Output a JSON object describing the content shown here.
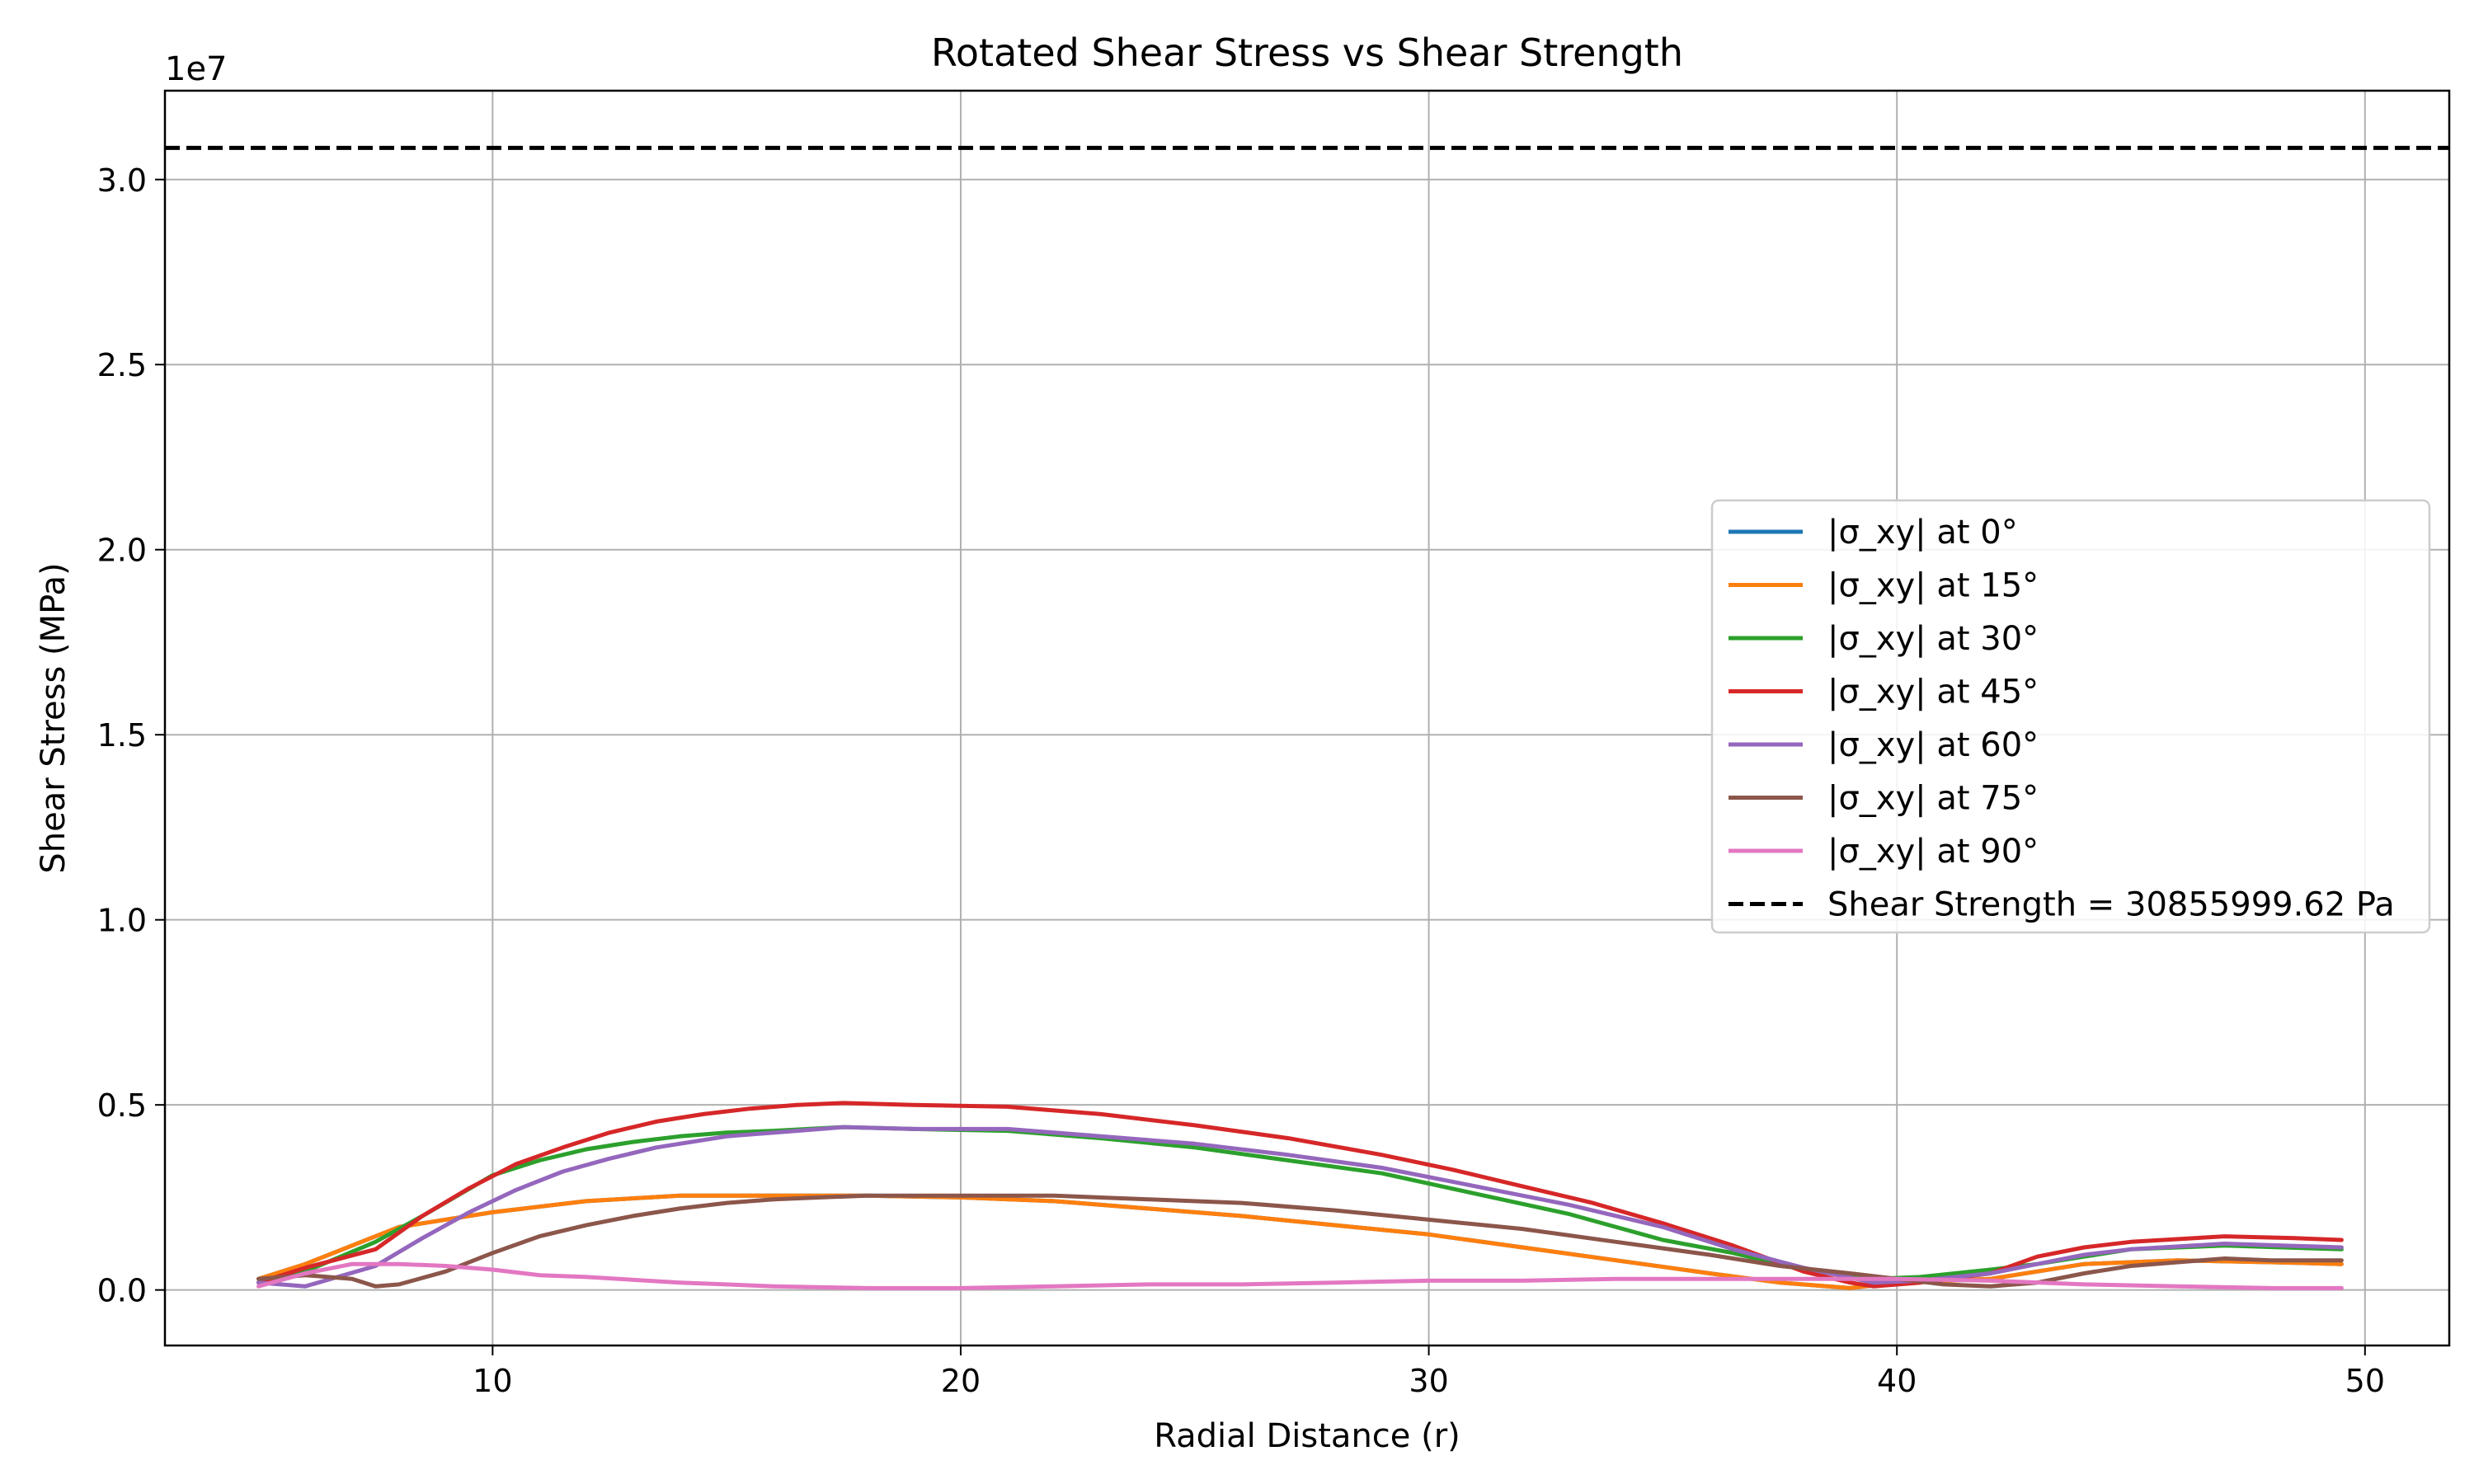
{
  "chart_data": {
    "type": "line",
    "title": "Rotated Shear Stress vs Shear Strength",
    "xlabel": "Radial Distance (r)",
    "ylabel": "Shear Stress (MPa)",
    "y_offset_label": "1e7",
    "xlim": [
      3,
      51.8
    ],
    "ylim": [
      -1500000,
      32400000
    ],
    "xticks": [
      10,
      20,
      30,
      40,
      50
    ],
    "xtick_labels": [
      "10",
      "20",
      "30",
      "40",
      "50"
    ],
    "yticks": [
      0,
      5000000,
      10000000,
      15000000,
      20000000,
      25000000,
      30000000
    ],
    "ytick_labels": [
      "0.0",
      "0.5",
      "1.0",
      "1.5",
      "2.0",
      "2.5",
      "3.0"
    ],
    "grid": true,
    "legend_position": "center-right",
    "series": [
      {
        "name": "|σ_xy| at 0°",
        "color": "#1f77b4",
        "x": [
          5,
          6,
          8,
          10,
          12,
          14,
          16,
          18,
          20,
          22,
          24,
          26,
          28,
          30,
          32,
          34,
          36,
          37.5,
          39,
          40,
          42,
          44,
          46,
          48,
          49.5
        ],
        "y": [
          300000,
          700000,
          1700000,
          2100000,
          2400000,
          2550000,
          2550000,
          2550000,
          2500000,
          2400000,
          2200000,
          2000000,
          1750000,
          1500000,
          1150000,
          800000,
          450000,
          200000,
          50000,
          200000,
          300000,
          700000,
          800000,
          750000,
          700000
        ]
      },
      {
        "name": "|σ_xy| at 15°",
        "color": "#ff7f0e",
        "x": [
          5,
          6,
          8,
          10,
          12,
          14,
          16,
          18,
          20,
          22,
          24,
          26,
          28,
          30,
          32,
          34,
          36,
          37.5,
          39,
          40,
          42,
          44,
          46,
          48,
          49.5
        ],
        "y": [
          300000,
          700000,
          1700000,
          2100000,
          2400000,
          2550000,
          2550000,
          2550000,
          2500000,
          2400000,
          2200000,
          2000000,
          1750000,
          1500000,
          1150000,
          800000,
          450000,
          200000,
          50000,
          200000,
          300000,
          700000,
          800000,
          750000,
          700000
        ]
      },
      {
        "name": "|σ_xy| at 30°",
        "color": "#2ca02c",
        "x": [
          5,
          6,
          7.5,
          8.5,
          10,
          11,
          12,
          13,
          14,
          15,
          16,
          17.5,
          19,
          21,
          23,
          25,
          27,
          29,
          31,
          33,
          35,
          36.5,
          38,
          39.5,
          40.5,
          42,
          43,
          44,
          45,
          47,
          49.5
        ],
        "y": [
          200000,
          500000,
          1300000,
          2000000,
          3100000,
          3500000,
          3800000,
          4000000,
          4150000,
          4250000,
          4300000,
          4400000,
          4350000,
          4300000,
          4100000,
          3850000,
          3500000,
          3150000,
          2600000,
          2050000,
          1350000,
          1000000,
          550000,
          300000,
          350000,
          550000,
          700000,
          900000,
          1100000,
          1200000,
          1100000
        ]
      },
      {
        "name": "|σ_xy| at 45°",
        "color": "#d62728",
        "x": [
          5,
          6,
          7.5,
          8.5,
          9.5,
          10.5,
          11.5,
          12.5,
          13.5,
          14.5,
          15.5,
          16.5,
          17.5,
          19,
          21,
          23,
          25,
          27,
          29,
          30.5,
          32,
          33.5,
          35,
          36.5,
          38,
          39,
          39.5,
          40.5,
          42,
          43,
          44,
          45,
          47,
          48.5,
          49.5
        ],
        "y": [
          200000,
          600000,
          1100000,
          2000000,
          2750000,
          3400000,
          3850000,
          4250000,
          4550000,
          4750000,
          4900000,
          5000000,
          5050000,
          5000000,
          4950000,
          4750000,
          4450000,
          4100000,
          3650000,
          3250000,
          2800000,
          2350000,
          1800000,
          1200000,
          500000,
          200000,
          100000,
          200000,
          450000,
          900000,
          1150000,
          1300000,
          1450000,
          1400000,
          1350000
        ]
      },
      {
        "name": "|σ_xy| at 60°",
        "color": "#9467bd",
        "x": [
          5,
          6,
          7.5,
          8.5,
          9.5,
          10.5,
          11.5,
          12.5,
          13.5,
          15,
          16.5,
          17.5,
          19,
          21,
          23,
          25,
          27,
          29,
          31,
          33,
          35,
          36.5,
          38,
          39.5,
          40.5,
          42,
          43,
          44,
          45,
          47,
          49.5
        ],
        "y": [
          200000,
          100000,
          650000,
          1400000,
          2100000,
          2700000,
          3200000,
          3550000,
          3850000,
          4150000,
          4300000,
          4400000,
          4350000,
          4350000,
          4150000,
          3950000,
          3650000,
          3300000,
          2800000,
          2300000,
          1700000,
          1100000,
          600000,
          200000,
          250000,
          450000,
          700000,
          950000,
          1100000,
          1250000,
          1150000
        ]
      },
      {
        "name": "|σ_xy| at 75°",
        "color": "#8c564b",
        "x": [
          5,
          6,
          7,
          7.5,
          8,
          9,
          10,
          11,
          12,
          13,
          14,
          15,
          16,
          17,
          18,
          20,
          22,
          24,
          26,
          28,
          30,
          32,
          34,
          36,
          37.5,
          39,
          40,
          41,
          42,
          43,
          44,
          45,
          46,
          47,
          48,
          49.5
        ],
        "y": [
          300000,
          400000,
          300000,
          100000,
          150000,
          500000,
          1000000,
          1450000,
          1750000,
          2000000,
          2200000,
          2350000,
          2450000,
          2500000,
          2550000,
          2550000,
          2550000,
          2450000,
          2350000,
          2150000,
          1900000,
          1650000,
          1300000,
          950000,
          650000,
          450000,
          300000,
          150000,
          100000,
          200000,
          450000,
          650000,
          750000,
          850000,
          800000,
          800000
        ]
      },
      {
        "name": "|σ_xy| at 90°",
        "color": "#e377c2",
        "x": [
          5,
          6,
          7,
          8,
          9,
          10,
          11,
          12,
          14,
          16,
          18,
          20,
          22,
          24,
          26,
          28,
          30,
          32,
          34,
          36,
          38,
          40,
          42,
          44,
          46,
          48,
          49.5
        ],
        "y": [
          100000,
          450000,
          700000,
          700000,
          650000,
          550000,
          400000,
          350000,
          200000,
          100000,
          50000,
          50000,
          100000,
          150000,
          150000,
          200000,
          250000,
          250000,
          300000,
          300000,
          300000,
          300000,
          250000,
          150000,
          100000,
          50000,
          50000
        ]
      }
    ],
    "reference_line": {
      "name": "Shear Strength = 30855999.62 Pa",
      "y": 30855999.62,
      "color": "#000000",
      "style": "dashed"
    }
  }
}
